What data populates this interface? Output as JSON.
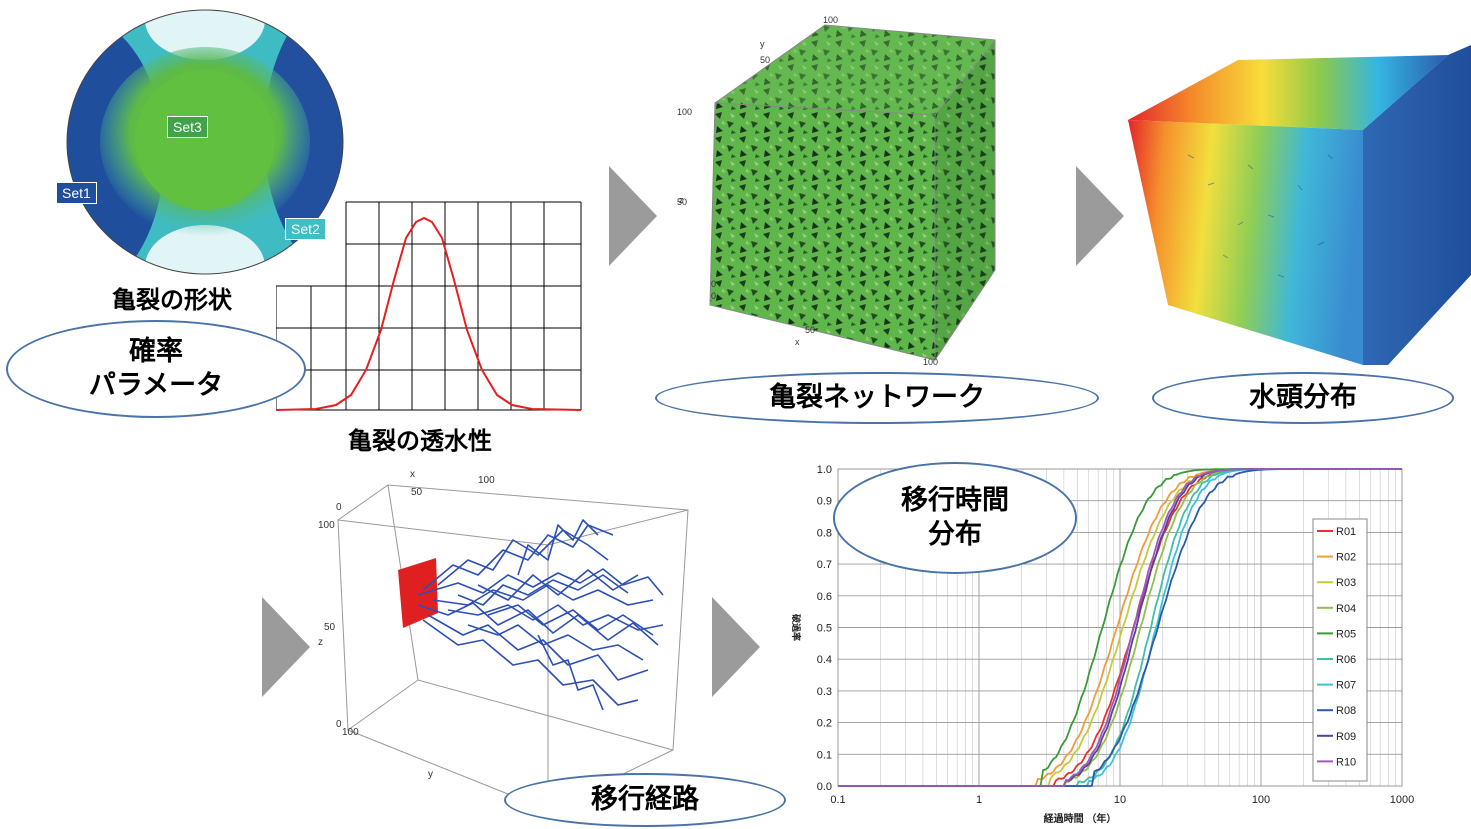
{
  "stereonet": {
    "sets": [
      "Set1",
      "Set2",
      "Set3"
    ],
    "caption": "亀裂の形状",
    "colors": {
      "set1": "#1f4e9c",
      "set2": "#3ebfc5",
      "set3": "#6dc141"
    }
  },
  "permeability": {
    "caption": "亀裂の透水性"
  },
  "parameters": {
    "line1": "確率",
    "line2": "パラメータ"
  },
  "network": {
    "caption": "亀裂ネットワーク",
    "axis_ticks": [
      "100",
      "y",
      "50",
      "100",
      "z",
      "50",
      "0",
      "0",
      "50",
      "x",
      "100"
    ]
  },
  "head": {
    "caption": "水頭分布"
  },
  "paths": {
    "caption": "移行経路",
    "axis_ticks": [
      "x",
      "50",
      "100",
      "0",
      "100",
      "z",
      "50",
      "0",
      "100",
      "y",
      "0"
    ]
  },
  "time_dist": {
    "line1": "移行時間",
    "line2": "分布"
  },
  "chart_data": {
    "type": "line",
    "xscale": "log",
    "xlim": [
      0.1,
      1000
    ],
    "ylim": [
      0.0,
      1.0
    ],
    "xticks": [
      "0.1",
      "1",
      "10",
      "100",
      "1000"
    ],
    "yticks": [
      "0.0",
      "0.1",
      "0.2",
      "0.3",
      "0.4",
      "0.5",
      "0.6",
      "0.7",
      "0.8",
      "0.9",
      "1.0"
    ],
    "xlabel": "経過時間 （年）",
    "ylabel": "破過率",
    "legend": "right",
    "grid": true,
    "series": [
      {
        "name": "R01",
        "color": "#e8312a",
        "median": 12.5,
        "spread": 0.26,
        "start": 3.4
      },
      {
        "name": "R02",
        "color": "#f39a3a",
        "median": 9.5,
        "spread": 0.27,
        "start": 2.6
      },
      {
        "name": "R03",
        "color": "#c6c93c",
        "median": 10.5,
        "spread": 0.27,
        "start": 3.2
      },
      {
        "name": "R04",
        "color": "#8fc04b",
        "median": 14.0,
        "spread": 0.24,
        "start": 4.0
      },
      {
        "name": "R05",
        "color": "#3a9a3a",
        "median": 7.5,
        "spread": 0.25,
        "start": 2.8
      },
      {
        "name": "R06",
        "color": "#3fbfa4",
        "median": 16.5,
        "spread": 0.22,
        "start": 5.0
      },
      {
        "name": "R07",
        "color": "#3fbfe0",
        "median": 18.0,
        "spread": 0.22,
        "start": 6.0
      },
      {
        "name": "R08",
        "color": "#2a5aa8",
        "median": 18.5,
        "spread": 0.26,
        "start": 6.5
      },
      {
        "name": "R09",
        "color": "#5b3fa0",
        "median": 13.0,
        "spread": 0.23,
        "start": 4.0
      },
      {
        "name": "R10",
        "color": "#9b5bb6",
        "median": 12.5,
        "spread": 0.23,
        "start": 4.0
      }
    ]
  }
}
